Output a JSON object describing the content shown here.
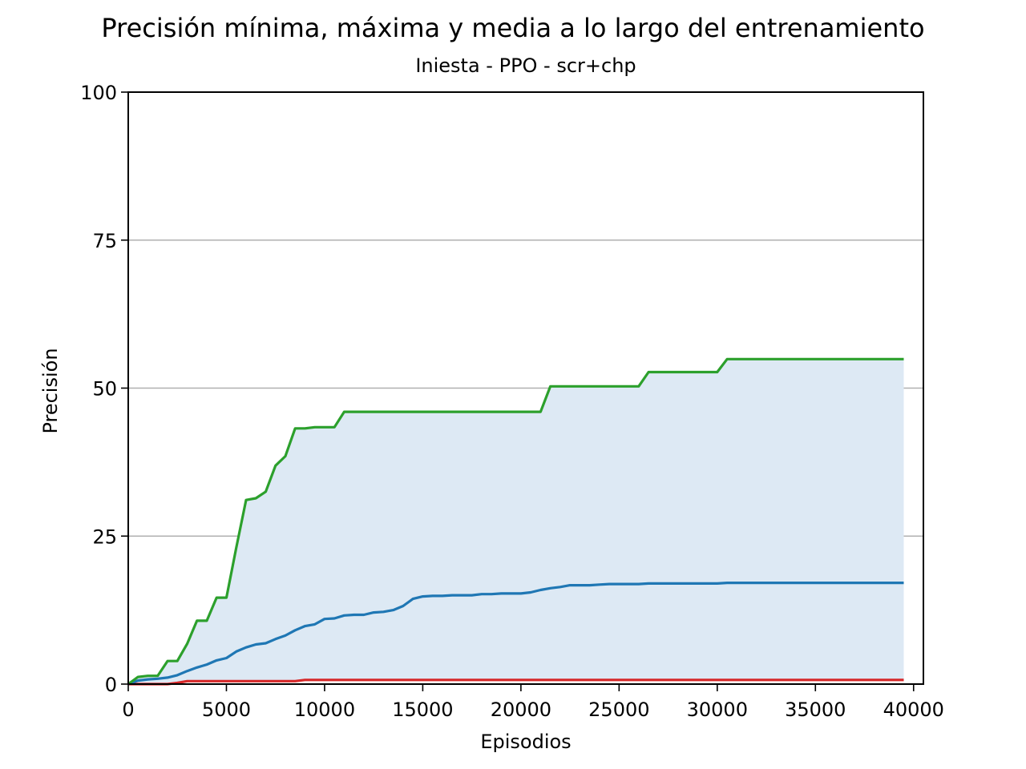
{
  "chart_data": {
    "type": "line",
    "title": "Precisión mínima, máxima y media a lo largo del entrenamiento",
    "subtitle": "Iniesta - PPO - scr+chp",
    "xlabel": "Episodios",
    "ylabel": "Precisión",
    "xlim": [
      0,
      40500
    ],
    "ylim": [
      0,
      100
    ],
    "xticks": [
      0,
      5000,
      10000,
      15000,
      20000,
      25000,
      30000,
      35000,
      40000
    ],
    "yticks": [
      0,
      25,
      50,
      75,
      100
    ],
    "grid": "y",
    "fill_between": [
      "min",
      "max"
    ],
    "colors": {
      "max": "#2ca02c",
      "mean": "#1f77b4",
      "min": "#d62728",
      "fill": "#dde9f4",
      "grid": "#b0b0b0"
    },
    "x": [
      0,
      500,
      1000,
      1500,
      2000,
      2500,
      3000,
      3500,
      4000,
      4500,
      5000,
      5500,
      6000,
      6500,
      7000,
      7500,
      8000,
      8500,
      9000,
      9500,
      10000,
      10500,
      11000,
      11500,
      12000,
      12500,
      13000,
      13500,
      14000,
      14500,
      15000,
      15500,
      16000,
      16500,
      17000,
      17500,
      18000,
      18500,
      19000,
      19500,
      20000,
      20500,
      21000,
      21500,
      22000,
      22500,
      23000,
      23500,
      24000,
      24500,
      25000,
      25500,
      26000,
      26500,
      27000,
      27500,
      28000,
      28500,
      29000,
      29500,
      30000,
      30500,
      31000,
      31500,
      32000,
      32500,
      33000,
      33500,
      34000,
      34500,
      35000,
      35500,
      36000,
      36500,
      37000,
      37500,
      38000,
      38500,
      39000,
      39500
    ],
    "series": [
      {
        "key": "max",
        "values": [
          0.0,
          1.2,
          1.4,
          1.4,
          3.9,
          3.9,
          6.8,
          10.7,
          10.7,
          14.6,
          14.6,
          23.0,
          31.1,
          31.4,
          32.5,
          36.9,
          38.5,
          43.2,
          43.2,
          43.4,
          43.4,
          43.4,
          46.0,
          46.0,
          46.0,
          46.0,
          46.0,
          46.0,
          46.0,
          46.0,
          46.0,
          46.0,
          46.0,
          46.0,
          46.0,
          46.0,
          46.0,
          46.0,
          46.0,
          46.0,
          46.0,
          46.0,
          46.0,
          50.3,
          50.3,
          50.3,
          50.3,
          50.3,
          50.3,
          50.3,
          50.3,
          50.3,
          50.3,
          52.7,
          52.7,
          52.7,
          52.7,
          52.7,
          52.7,
          52.7,
          52.7,
          54.9,
          54.9,
          54.9,
          54.9,
          54.9,
          54.9,
          54.9,
          54.9,
          54.9,
          54.9,
          54.9,
          54.9,
          54.9,
          54.9,
          54.9,
          54.9,
          54.9,
          54.9,
          54.9
        ]
      },
      {
        "key": "mean",
        "values": [
          0.0,
          0.6,
          0.8,
          0.9,
          1.1,
          1.5,
          2.2,
          2.8,
          3.3,
          4.0,
          4.4,
          5.5,
          6.2,
          6.7,
          6.9,
          7.6,
          8.2,
          9.1,
          9.8,
          10.1,
          11.0,
          11.1,
          11.6,
          11.7,
          11.7,
          12.1,
          12.2,
          12.5,
          13.2,
          14.4,
          14.8,
          14.9,
          14.9,
          15.0,
          15.0,
          15.0,
          15.2,
          15.2,
          15.3,
          15.3,
          15.3,
          15.5,
          15.9,
          16.2,
          16.4,
          16.7,
          16.7,
          16.7,
          16.8,
          16.9,
          16.9,
          16.9,
          16.9,
          17.0,
          17.0,
          17.0,
          17.0,
          17.0,
          17.0,
          17.0,
          17.0,
          17.1,
          17.1,
          17.1,
          17.1,
          17.1,
          17.1,
          17.1,
          17.1,
          17.1,
          17.1,
          17.1,
          17.1,
          17.1,
          17.1,
          17.1,
          17.1,
          17.1,
          17.1,
          17.1
        ]
      },
      {
        "key": "min",
        "values": [
          0.0,
          0.0,
          0.0,
          0.0,
          0.0,
          0.2,
          0.5,
          0.5,
          0.5,
          0.5,
          0.5,
          0.5,
          0.5,
          0.5,
          0.5,
          0.5,
          0.5,
          0.5,
          0.7,
          0.7,
          0.7,
          0.7,
          0.7,
          0.7,
          0.7,
          0.7,
          0.7,
          0.7,
          0.7,
          0.7,
          0.7,
          0.7,
          0.7,
          0.7,
          0.7,
          0.7,
          0.7,
          0.7,
          0.7,
          0.7,
          0.7,
          0.7,
          0.7,
          0.7,
          0.7,
          0.7,
          0.7,
          0.7,
          0.7,
          0.7,
          0.7,
          0.7,
          0.7,
          0.7,
          0.7,
          0.7,
          0.7,
          0.7,
          0.7,
          0.7,
          0.7,
          0.7,
          0.7,
          0.7,
          0.7,
          0.7,
          0.7,
          0.7,
          0.7,
          0.7,
          0.7,
          0.7,
          0.7,
          0.7,
          0.7,
          0.7,
          0.7,
          0.7,
          0.7,
          0.7
        ]
      }
    ]
  }
}
